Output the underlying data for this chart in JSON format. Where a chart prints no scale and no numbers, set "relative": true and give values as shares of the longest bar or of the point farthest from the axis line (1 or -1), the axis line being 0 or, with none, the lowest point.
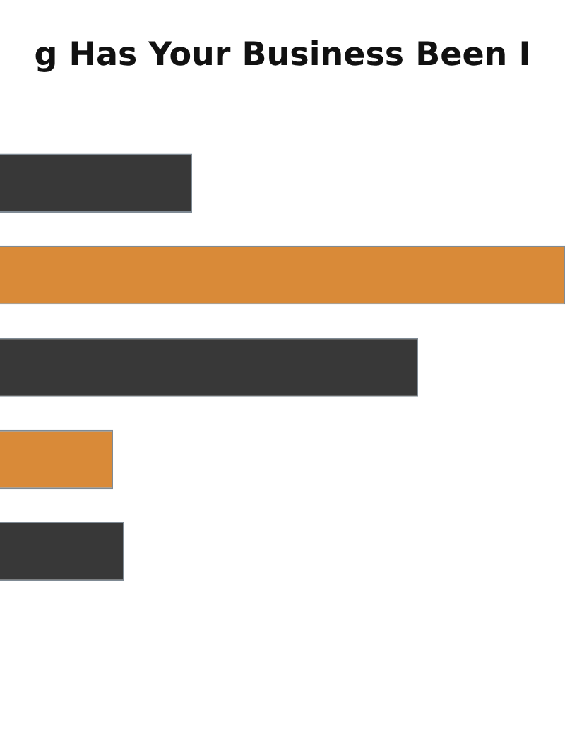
{
  "chart_data": {
    "type": "bar",
    "orientation": "horizontal",
    "relative": true,
    "title": "g Has Your Business Been I",
    "categories": [
      null,
      null,
      null,
      null,
      null
    ],
    "values": [
      0.34,
      1,
      0.74,
      0.2,
      0.22
    ],
    "colors": [
      "#383838",
      "#d98a38",
      "#383838",
      "#d98a38",
      "#383838"
    ],
    "legend": false
  }
}
